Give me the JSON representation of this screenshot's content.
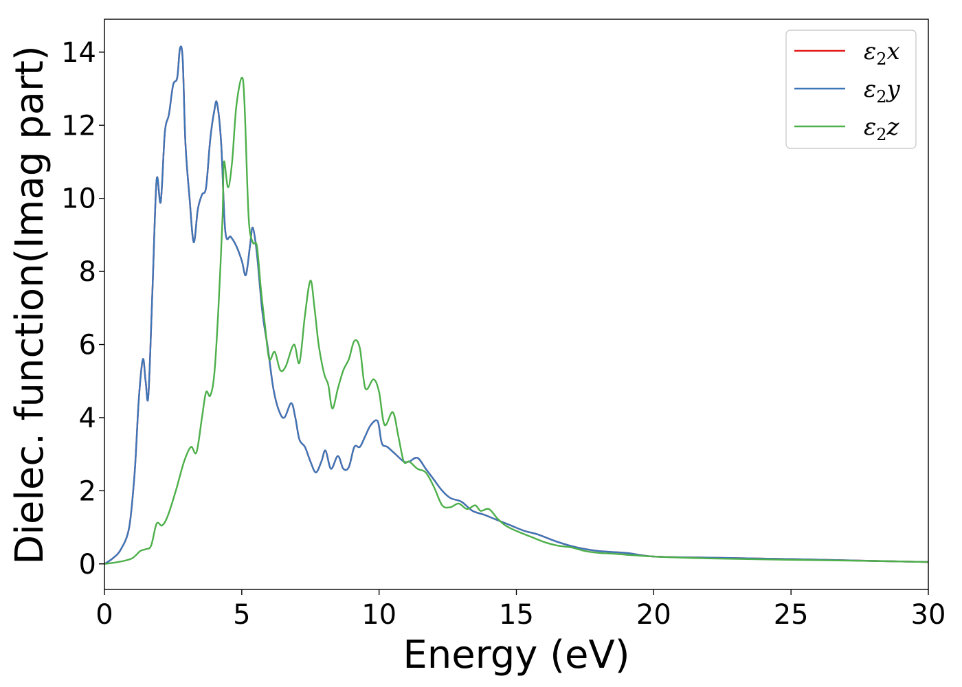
{
  "chart_data": {
    "type": "line",
    "title": "",
    "xlabel": "Energy (eV)",
    "ylabel": "Dielec. function(Imag part)",
    "xlim": [
      0,
      30
    ],
    "ylim": [
      -0.7,
      14.9
    ],
    "xticks": [
      0,
      5,
      10,
      15,
      20,
      25,
      30
    ],
    "yticks": [
      0,
      2,
      4,
      6,
      8,
      10,
      12,
      14
    ],
    "grid": false,
    "legend_position": "top-right",
    "series": [
      {
        "name": "ε₂x",
        "legend_base": "ε",
        "legend_sub": "2",
        "legend_suffix": "x",
        "color": "#e41a1c",
        "x": [
          0,
          0.3,
          0.6,
          0.9,
          1.1,
          1.25,
          1.4,
          1.5,
          1.6,
          1.75,
          1.9,
          2.05,
          2.2,
          2.35,
          2.5,
          2.65,
          2.75,
          2.85,
          2.95,
          3.1,
          3.25,
          3.4,
          3.55,
          3.7,
          3.85,
          4.0,
          4.1,
          4.25,
          4.4,
          4.6,
          4.8,
          5.0,
          5.15,
          5.3,
          5.4,
          5.55,
          5.75,
          5.95,
          6.15,
          6.35,
          6.55,
          6.8,
          6.95,
          7.1,
          7.3,
          7.5,
          7.7,
          7.9,
          8.05,
          8.25,
          8.5,
          8.7,
          8.9,
          9.1,
          9.3,
          9.5,
          9.7,
          9.95,
          10.1,
          10.3,
          10.6,
          10.9,
          11.1,
          11.4,
          11.7,
          12.0,
          12.3,
          12.6,
          13.0,
          13.4,
          13.8,
          14.3,
          14.8,
          15.3,
          15.8,
          16.5,
          17.2,
          18.0,
          19.0,
          20.0,
          22.0,
          25.0,
          28.0,
          30.0
        ],
        "values": [
          0,
          0.15,
          0.4,
          1.0,
          2.5,
          4.5,
          5.6,
          5.0,
          4.6,
          7.5,
          10.5,
          9.9,
          11.8,
          12.3,
          13.1,
          13.3,
          14.1,
          13.8,
          11.5,
          10.0,
          8.8,
          9.7,
          10.1,
          10.3,
          11.6,
          12.4,
          12.6,
          11.5,
          9.1,
          8.95,
          8.7,
          8.3,
          7.9,
          8.7,
          9.2,
          8.5,
          6.9,
          5.9,
          4.8,
          4.2,
          4.0,
          4.4,
          4.0,
          3.4,
          3.2,
          2.8,
          2.5,
          2.8,
          3.1,
          2.6,
          2.95,
          2.6,
          2.65,
          3.2,
          3.2,
          3.5,
          3.8,
          3.9,
          3.3,
          3.2,
          3.0,
          2.8,
          2.8,
          2.9,
          2.6,
          2.3,
          2.0,
          1.8,
          1.7,
          1.45,
          1.35,
          1.2,
          1.05,
          0.9,
          0.8,
          0.6,
          0.45,
          0.35,
          0.3,
          0.2,
          0.17,
          0.13,
          0.08,
          0.05
        ]
      },
      {
        "name": "ε₂y",
        "legend_base": "ε",
        "legend_sub": "2",
        "legend_suffix": "y",
        "color": "#3d76b8",
        "x": [
          0,
          0.3,
          0.6,
          0.9,
          1.1,
          1.25,
          1.4,
          1.5,
          1.6,
          1.75,
          1.9,
          2.05,
          2.2,
          2.35,
          2.5,
          2.65,
          2.75,
          2.85,
          2.95,
          3.1,
          3.25,
          3.4,
          3.55,
          3.7,
          3.85,
          4.0,
          4.1,
          4.25,
          4.4,
          4.6,
          4.8,
          5.0,
          5.15,
          5.3,
          5.4,
          5.55,
          5.75,
          5.95,
          6.15,
          6.35,
          6.55,
          6.8,
          6.95,
          7.1,
          7.3,
          7.5,
          7.7,
          7.9,
          8.05,
          8.25,
          8.5,
          8.7,
          8.9,
          9.1,
          9.3,
          9.5,
          9.7,
          9.95,
          10.1,
          10.3,
          10.6,
          10.9,
          11.1,
          11.4,
          11.7,
          12.0,
          12.3,
          12.6,
          13.0,
          13.4,
          13.8,
          14.3,
          14.8,
          15.3,
          15.8,
          16.5,
          17.2,
          18.0,
          19.0,
          20.0,
          22.0,
          25.0,
          28.0,
          30.0
        ],
        "values": [
          0,
          0.15,
          0.4,
          1.0,
          2.5,
          4.5,
          5.6,
          5.0,
          4.6,
          7.5,
          10.5,
          9.9,
          11.8,
          12.3,
          13.1,
          13.3,
          14.1,
          13.8,
          11.5,
          10.0,
          8.8,
          9.7,
          10.1,
          10.3,
          11.6,
          12.4,
          12.6,
          11.5,
          9.1,
          8.95,
          8.7,
          8.3,
          7.9,
          8.7,
          9.2,
          8.5,
          6.9,
          5.9,
          4.8,
          4.2,
          4.0,
          4.4,
          4.0,
          3.4,
          3.2,
          2.8,
          2.5,
          2.8,
          3.1,
          2.6,
          2.95,
          2.6,
          2.65,
          3.2,
          3.2,
          3.5,
          3.8,
          3.9,
          3.3,
          3.2,
          3.0,
          2.8,
          2.8,
          2.9,
          2.6,
          2.3,
          2.0,
          1.8,
          1.7,
          1.45,
          1.35,
          1.2,
          1.05,
          0.9,
          0.8,
          0.6,
          0.45,
          0.35,
          0.3,
          0.2,
          0.17,
          0.13,
          0.08,
          0.05
        ]
      },
      {
        "name": "ε₂z",
        "legend_base": "ε",
        "legend_sub": "2",
        "legend_suffix": "z",
        "color": "#4daf4a",
        "x": [
          0,
          0.5,
          1.0,
          1.3,
          1.5,
          1.7,
          1.9,
          2.1,
          2.3,
          2.6,
          2.9,
          3.15,
          3.35,
          3.55,
          3.7,
          3.85,
          4.0,
          4.15,
          4.3,
          4.35,
          4.5,
          4.65,
          4.8,
          5.0,
          5.1,
          5.25,
          5.4,
          5.55,
          5.7,
          5.85,
          6.0,
          6.2,
          6.4,
          6.6,
          6.9,
          7.1,
          7.3,
          7.5,
          7.65,
          7.8,
          8.0,
          8.15,
          8.3,
          8.5,
          8.7,
          8.9,
          9.1,
          9.3,
          9.5,
          9.8,
          10.0,
          10.2,
          10.5,
          10.7,
          10.9,
          11.1,
          11.4,
          11.7,
          12.0,
          12.3,
          12.6,
          12.9,
          13.2,
          13.5,
          13.7,
          14.0,
          14.3,
          14.6,
          15.0,
          15.5,
          16.0,
          16.5,
          17.0,
          17.5,
          18.0,
          18.5,
          19.0,
          20.0,
          21.0,
          22.0,
          25.0,
          28.0,
          30.0
        ],
        "values": [
          0,
          0.05,
          0.15,
          0.35,
          0.4,
          0.5,
          1.1,
          1.05,
          1.3,
          2.0,
          2.8,
          3.2,
          3.05,
          4.0,
          4.7,
          4.6,
          5.2,
          7.0,
          9.5,
          11.0,
          10.3,
          11.0,
          12.5,
          13.3,
          12.6,
          9.5,
          8.8,
          8.7,
          7.5,
          6.5,
          5.6,
          5.8,
          5.3,
          5.4,
          6.0,
          5.5,
          6.8,
          7.75,
          7.0,
          6.0,
          5.2,
          4.9,
          4.25,
          4.8,
          5.3,
          5.6,
          6.1,
          5.9,
          4.8,
          5.05,
          4.7,
          3.8,
          4.15,
          3.5,
          2.8,
          2.8,
          2.6,
          2.5,
          2.1,
          1.6,
          1.55,
          1.65,
          1.5,
          1.6,
          1.45,
          1.5,
          1.25,
          1.05,
          0.9,
          0.75,
          0.6,
          0.5,
          0.45,
          0.35,
          0.3,
          0.28,
          0.25,
          0.2,
          0.17,
          0.15,
          0.11,
          0.08,
          0.05
        ]
      }
    ]
  }
}
